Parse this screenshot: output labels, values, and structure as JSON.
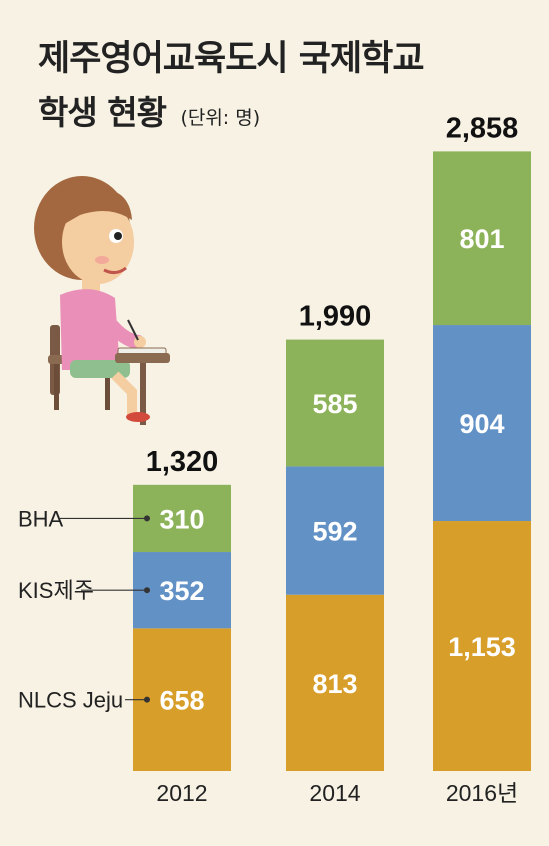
{
  "header": {
    "title": "제주영어교육도시 국제학교",
    "subtitle": "학생 현황",
    "unit": "(단위: 명)"
  },
  "chart_data": {
    "type": "bar",
    "stacked": true,
    "title": "제주영어교육도시 국제학교 학생 현황",
    "unit": "(단위: 명)",
    "categories": [
      "2012",
      "2014",
      "2016년"
    ],
    "series": [
      {
        "name": "NLCS Jeju",
        "values": [
          658,
          813,
          1153
        ],
        "labels": [
          "658",
          "813",
          "1,153"
        ],
        "color": "#d89e2a"
      },
      {
        "name": "KIS제주",
        "values": [
          352,
          592,
          904
        ],
        "labels": [
          "352",
          "592",
          "904"
        ],
        "color": "#6291c6"
      },
      {
        "name": "BHA",
        "values": [
          310,
          585,
          801
        ],
        "labels": [
          "310",
          "585",
          "801"
        ],
        "color": "#8db35a"
      }
    ],
    "totals": [
      1320,
      1990,
      2858
    ],
    "total_labels": [
      "1,320",
      "1,990",
      "2,858"
    ],
    "legend_position": "left"
  }
}
